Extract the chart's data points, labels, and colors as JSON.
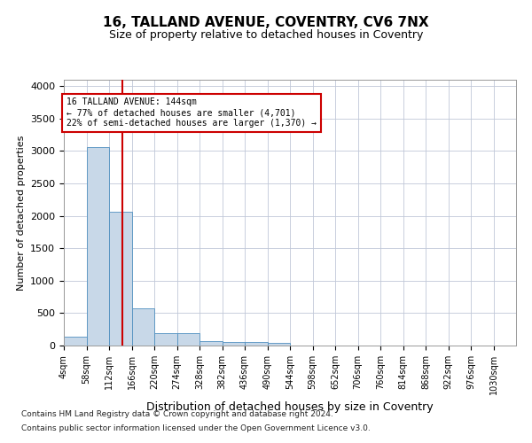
{
  "title1": "16, TALLAND AVENUE, COVENTRY, CV6 7NX",
  "title2": "Size of property relative to detached houses in Coventry",
  "xlabel": "Distribution of detached houses by size in Coventry",
  "ylabel": "Number of detached properties",
  "annotation_line1": "16 TALLAND AVENUE: 144sqm",
  "annotation_line2": "← 77% of detached houses are smaller (4,701)",
  "annotation_line3": "22% of semi-detached houses are larger (1,370) →",
  "property_size": 144,
  "bin_edges": [
    4,
    58,
    112,
    166,
    220,
    274,
    328,
    382,
    436,
    490,
    544,
    598,
    652,
    706,
    760,
    814,
    868,
    922,
    976,
    1030,
    1084
  ],
  "bar_heights": [
    130,
    3060,
    2060,
    570,
    195,
    195,
    75,
    55,
    50,
    35,
    0,
    0,
    0,
    0,
    0,
    0,
    0,
    0,
    0,
    0
  ],
  "bar_color": "#c8d8e8",
  "bar_edge_color": "#5090c0",
  "vline_color": "#cc0000",
  "vline_x": 144,
  "ylim": [
    0,
    4100
  ],
  "yticks": [
    0,
    500,
    1000,
    1500,
    2000,
    2500,
    3000,
    3500,
    4000
  ],
  "background_color": "#ffffff",
  "grid_color": "#c0c8d8",
  "footnote1": "Contains HM Land Registry data © Crown copyright and database right 2024.",
  "footnote2": "Contains public sector information licensed under the Open Government Licence v3.0.",
  "title1_fontsize": 11,
  "title2_fontsize": 9,
  "annotation_box_color": "#ffffff",
  "annotation_box_edge_color": "#cc0000",
  "annot_fontsize": 7,
  "ylabel_fontsize": 8,
  "xlabel_fontsize": 9,
  "tick_fontsize": 7,
  "ytick_fontsize": 8,
  "footnote_fontsize": 6.5
}
